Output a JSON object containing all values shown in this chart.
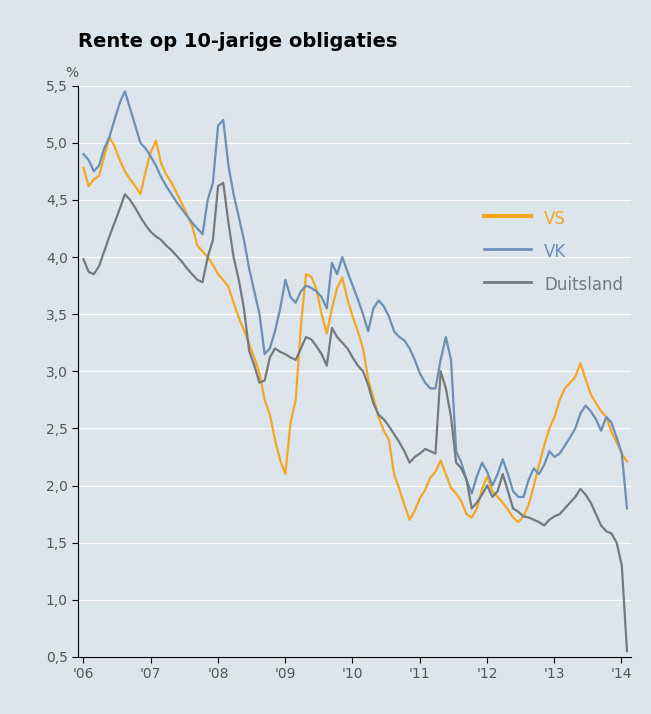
{
  "title": "Rente op 10-jarige obligaties",
  "ylabel": "%",
  "ylim": [
    0.5,
    5.5
  ],
  "yticks": [
    0.5,
    1.0,
    1.5,
    2.0,
    2.5,
    3.0,
    3.5,
    4.0,
    4.5,
    5.0,
    5.5
  ],
  "ytick_labels": [
    "0,5",
    "1,0",
    "1,5",
    "2,0",
    "2,5",
    "3,0",
    "3,5",
    "4,0",
    "4,5",
    "5,0",
    "5,5"
  ],
  "xtick_positions": [
    2006,
    2007,
    2008,
    2009,
    2010,
    2011,
    2012,
    2013,
    2014
  ],
  "xtick_labels": [
    "'06",
    "'07",
    "'08",
    "'09",
    "'10",
    "'11",
    "'12",
    "'13",
    "'14"
  ],
  "background_color": "#dce4ec",
  "line_vs_color": "#f5a623",
  "line_vk_color": "#6b8fb5",
  "line_duitsland_color": "#717b7e",
  "legend_labels": [
    "VS",
    "VK",
    "Duitsland"
  ],
  "title_fontsize": 14,
  "tick_fontsize": 10,
  "vs": [
    4.78,
    4.62,
    4.68,
    4.71,
    4.88,
    5.05,
    4.97,
    4.85,
    4.75,
    4.68,
    4.62,
    4.55,
    4.75,
    4.92,
    5.02,
    4.82,
    4.72,
    4.65,
    4.56,
    4.47,
    4.37,
    4.27,
    4.1,
    4.05,
    4.0,
    3.93,
    3.85,
    3.8,
    3.74,
    3.6,
    3.47,
    3.36,
    3.24,
    3.12,
    2.98,
    2.75,
    2.62,
    2.4,
    2.22,
    2.1,
    2.55,
    2.75,
    3.4,
    3.85,
    3.83,
    3.72,
    3.5,
    3.33,
    3.55,
    3.73,
    3.82,
    3.63,
    3.48,
    3.35,
    3.2,
    2.93,
    2.77,
    2.6,
    2.48,
    2.4,
    2.1,
    1.97,
    1.83,
    1.7,
    1.78,
    1.89,
    1.96,
    2.07,
    2.12,
    2.22,
    2.1,
    1.98,
    1.93,
    1.86,
    1.75,
    1.72,
    1.8,
    1.97,
    2.08,
    1.95,
    1.9,
    1.85,
    1.79,
    1.72,
    1.68,
    1.73,
    1.83,
    2.0,
    2.18,
    2.35,
    2.5,
    2.6,
    2.75,
    2.85,
    2.9,
    2.95,
    3.07,
    2.93,
    2.8,
    2.72,
    2.65,
    2.6,
    2.47,
    2.38,
    2.28,
    2.21
  ],
  "vk": [
    4.9,
    4.85,
    4.75,
    4.8,
    4.95,
    5.05,
    5.2,
    5.35,
    5.45,
    5.3,
    5.15,
    5.0,
    4.95,
    4.88,
    4.8,
    4.7,
    4.62,
    4.55,
    4.48,
    4.42,
    4.36,
    4.3,
    4.25,
    4.2,
    4.5,
    4.65,
    5.15,
    5.2,
    4.8,
    4.55,
    4.35,
    4.15,
    3.9,
    3.7,
    3.5,
    3.15,
    3.2,
    3.35,
    3.55,
    3.8,
    3.65,
    3.6,
    3.7,
    3.75,
    3.73,
    3.7,
    3.65,
    3.55,
    3.95,
    3.85,
    4.0,
    3.87,
    3.75,
    3.63,
    3.5,
    3.35,
    3.55,
    3.62,
    3.57,
    3.48,
    3.35,
    3.3,
    3.27,
    3.2,
    3.1,
    2.98,
    2.9,
    2.85,
    2.85,
    3.1,
    3.3,
    3.1,
    2.3,
    2.2,
    2.05,
    1.93,
    2.08,
    2.2,
    2.12,
    2.0,
    2.1,
    2.23,
    2.1,
    1.95,
    1.9,
    1.9,
    2.05,
    2.15,
    2.1,
    2.18,
    2.3,
    2.25,
    2.28,
    2.35,
    2.42,
    2.5,
    2.63,
    2.7,
    2.65,
    2.58,
    2.48,
    2.6,
    2.55,
    2.42,
    2.28,
    1.8
  ],
  "duitsland": [
    3.98,
    3.87,
    3.85,
    3.92,
    4.05,
    4.18,
    4.3,
    4.42,
    4.55,
    4.5,
    4.43,
    4.35,
    4.28,
    4.22,
    4.18,
    4.15,
    4.1,
    4.06,
    4.01,
    3.96,
    3.9,
    3.85,
    3.8,
    3.78,
    4.0,
    4.15,
    4.62,
    4.65,
    4.3,
    4.0,
    3.8,
    3.55,
    3.18,
    3.05,
    2.9,
    2.92,
    3.12,
    3.2,
    3.17,
    3.15,
    3.12,
    3.1,
    3.2,
    3.3,
    3.28,
    3.22,
    3.15,
    3.05,
    3.38,
    3.3,
    3.25,
    3.2,
    3.12,
    3.05,
    3.0,
    2.88,
    2.72,
    2.62,
    2.58,
    2.52,
    2.45,
    2.38,
    2.3,
    2.2,
    2.25,
    2.28,
    2.32,
    2.3,
    2.28,
    3.0,
    2.85,
    2.6,
    2.2,
    2.15,
    2.05,
    1.8,
    1.85,
    1.92,
    2.0,
    1.9,
    1.95,
    2.1,
    1.95,
    1.8,
    1.77,
    1.73,
    1.72,
    1.7,
    1.68,
    1.65,
    1.7,
    1.73,
    1.75,
    1.8,
    1.85,
    1.9,
    1.97,
    1.92,
    1.85,
    1.75,
    1.65,
    1.6,
    1.58,
    1.5,
    1.3,
    0.55
  ]
}
